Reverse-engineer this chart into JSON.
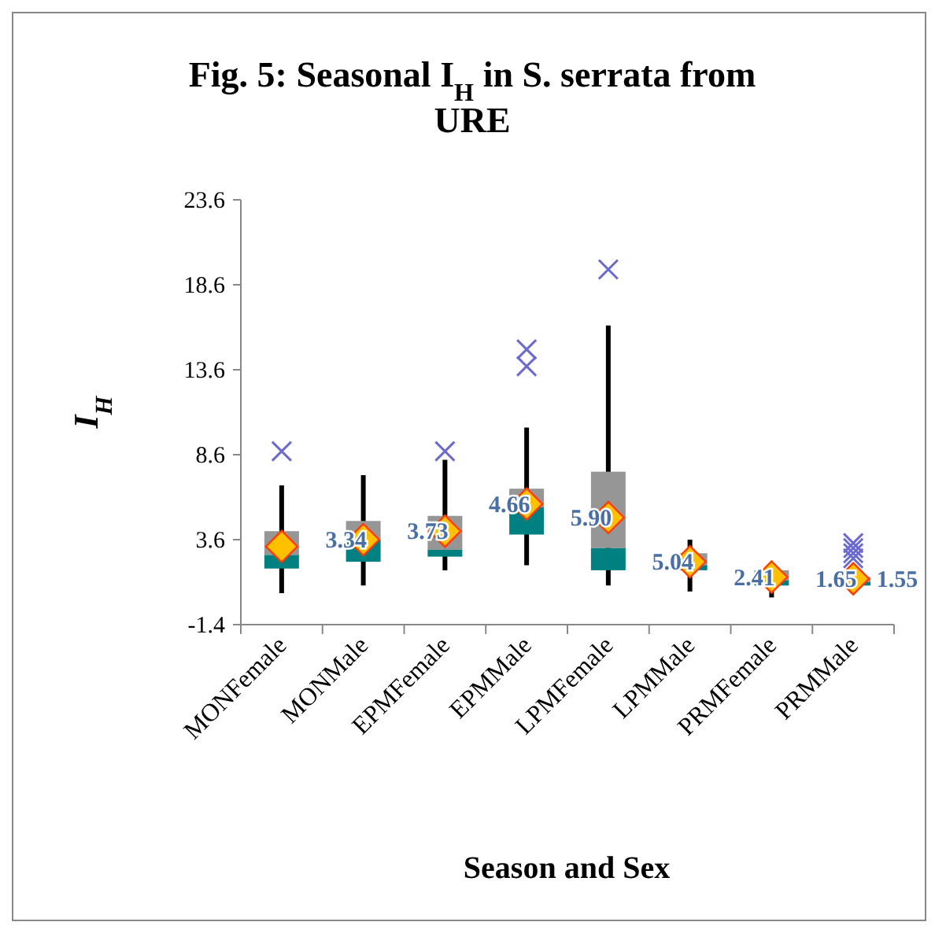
{
  "chart_data": {
    "type": "box",
    "title": "Fig. 5: Seasonal I$_{H}$ in S. serrata from URE",
    "xlabel": "Season and Sex",
    "ylabel": "I$_{H}$",
    "categories": [
      "MONFemale",
      "MONMale",
      "EPMFemale",
      "EPMMale",
      "LPMFemale",
      "LPMMale",
      "PRMFemale",
      "PRMMale"
    ],
    "colors": [
      "#969696",
      "#969696",
      "#969696",
      "#969696",
      "#969696",
      "#969696",
      "#969696",
      "#969696"
    ],
    "series": [
      {
        "color": "#008080",
        "boxes": [
          {
            "low": 0.45,
            "q1": 1.9,
            "median": 2.7,
            "q3": 4.1,
            "high": 6.8,
            "mean": 3.2,
            "outliers": [
              8.8
            ]
          },
          {
            "low": 0.9,
            "q1": 2.3,
            "median": 3.6,
            "q3": 4.7,
            "high": 7.4,
            "mean": 3.6
          },
          {
            "low": 1.8,
            "q1": 2.6,
            "median": 3.0,
            "q3": 5.0,
            "high": 8.3,
            "mean": 4.1,
            "outliers": [
              8.8
            ]
          },
          {
            "low": 2.1,
            "q1": 3.9,
            "median": 5.5,
            "q3": 6.6,
            "high": 10.2,
            "mean": 5.7,
            "outliers": [
              13.8,
              14.8
            ]
          },
          {
            "low": 0.9,
            "q1": 1.8,
            "median": 3.1,
            "q3": 7.6,
            "high": 16.2,
            "mean": 4.9,
            "outliers": [
              19.5
            ]
          },
          {
            "low": 0.55,
            "q1": 1.8,
            "median": 2.1,
            "q3": 2.8,
            "high": 3.6,
            "mean": 2.3
          },
          {
            "low": 0.2,
            "q1": 0.9,
            "median": 1.2,
            "q3": 1.8,
            "high": 2.1,
            "mean": 1.4
          },
          {
            "low": 0.45,
            "q1": 0.9,
            "median": 1.1,
            "q3": 1.4,
            "high": 1.7,
            "mean": 1.3,
            "outliers": [
              2.5,
              2.8,
              3.1,
              3.4
            ]
          }
        ]
      }
    ],
    "ylim": [
      -1.4,
      23.6
    ],
    "yticks": [
      -1.4,
      3.6,
      8.6,
      13.6,
      18.6,
      23.6
    ],
    "annotations": [
      "3.34",
      "3.73",
      "4.66",
      "5.90",
      "5.04",
      "2.41",
      "1.65",
      "1.55"
    ]
  }
}
